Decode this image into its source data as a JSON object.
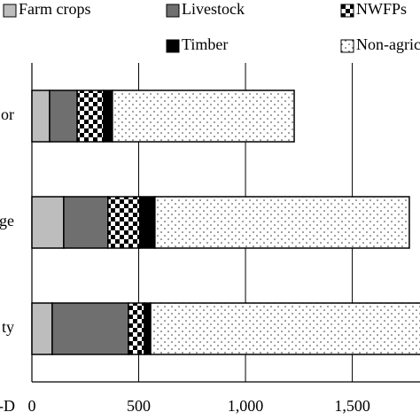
{
  "chart_data": {
    "type": "stacked-barh",
    "categories": [
      "or",
      "ge",
      "ty"
    ],
    "series": [
      {
        "name": "Farm crops",
        "color": "#bdbdbd",
        "values": [
          83,
          149,
          95
        ]
      },
      {
        "name": "Livestock",
        "color": "#6f6f6f",
        "values": [
          129,
          207,
          357
        ]
      },
      {
        "name": "NWFPs",
        "color": "#000000",
        "pattern": "checker",
        "values": [
          124,
          149,
          75
        ]
      },
      {
        "name": "Timber",
        "color": "#000000",
        "values": [
          41,
          71,
          29
        ]
      },
      {
        "name": "Non-agriculture",
        "color": "#ffffff",
        "pattern": "dots",
        "values": [
          851,
          1191,
          1300
        ]
      }
    ],
    "annotation": "-D",
    "xlim": [
      0,
      1817
    ],
    "xticks": [
      0,
      500,
      {
        "value": 1000,
        "label": "1,000"
      },
      {
        "value": 1500,
        "label": "1,500"
      }
    ],
    "grid": true
  }
}
